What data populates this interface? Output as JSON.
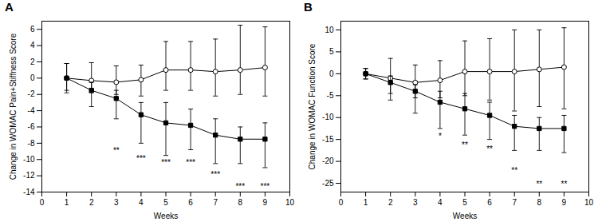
{
  "chart_data": [
    {
      "type": "line",
      "title": "A",
      "xlabel": "Weeks",
      "ylabel": "Change in WOMAC Pain+Stiffness Score",
      "xlim": [
        0,
        10
      ],
      "ylim": [
        -14,
        7
      ],
      "xticks": [
        0,
        1,
        2,
        3,
        4,
        5,
        6,
        7,
        8,
        9,
        10
      ],
      "yticks": [
        -14,
        -12,
        -10,
        -8,
        -6,
        -4,
        -2,
        0,
        2,
        4,
        6
      ],
      "grid": false,
      "series": [
        {
          "color": "#000000",
          "marker": "circle_open",
          "x": [
            1,
            2,
            3,
            4,
            5,
            6,
            7,
            8,
            9
          ],
          "values": [
            0.0,
            -0.3,
            -0.5,
            -0.2,
            1.0,
            1.0,
            0.8,
            1.0,
            1.3
          ],
          "yerr_low": [
            1.5,
            1.5,
            1.5,
            2.0,
            2.5,
            2.5,
            3.0,
            3.0,
            3.5
          ],
          "yerr_high": [
            1.8,
            2.2,
            2.0,
            1.8,
            3.5,
            3.5,
            4.0,
            5.5,
            5.0
          ]
        },
        {
          "color": "#000000",
          "marker": "square",
          "x": [
            1,
            2,
            3,
            4,
            5,
            6,
            7,
            8,
            9
          ],
          "values": [
            0.0,
            -1.5,
            -2.5,
            -4.5,
            -5.5,
            -5.8,
            -7.0,
            -7.5,
            -7.5
          ],
          "yerr_low": [
            1.8,
            2.0,
            2.5,
            3.5,
            4.0,
            3.0,
            3.5,
            3.0,
            3.5
          ],
          "yerr_high": [
            1.8,
            1.0,
            1.0,
            1.5,
            2.5,
            2.0,
            2.0,
            1.5,
            2.0
          ]
        }
      ],
      "annotations": [
        {
          "x": 3,
          "y": -8.5,
          "text": "**"
        },
        {
          "x": 4,
          "y": -9.5,
          "text": "***"
        },
        {
          "x": 5,
          "y": -10.0,
          "text": "***"
        },
        {
          "x": 6,
          "y": -10.0,
          "text": "***"
        },
        {
          "x": 7,
          "y": -11.5,
          "text": "***"
        },
        {
          "x": 8,
          "y": -13.0,
          "text": "***"
        },
        {
          "x": 9,
          "y": -13.0,
          "text": "***"
        }
      ]
    },
    {
      "type": "line",
      "title": "B",
      "xlabel": "Weeks",
      "ylabel": "Change in WOMAC Function Score",
      "xlim": [
        0,
        10
      ],
      "ylim": [
        -27,
        12
      ],
      "xticks": [
        0,
        1,
        2,
        3,
        4,
        5,
        6,
        7,
        8,
        9,
        10
      ],
      "yticks": [
        -25,
        -20,
        -15,
        -10,
        -5,
        0,
        5,
        10
      ],
      "grid": false,
      "series": [
        {
          "color": "#000000",
          "marker": "circle_open",
          "x": [
            1,
            2,
            3,
            4,
            5,
            6,
            7,
            8,
            9
          ],
          "values": [
            0.0,
            -1.0,
            -2.0,
            -1.5,
            0.5,
            0.5,
            0.5,
            1.0,
            1.5
          ],
          "yerr_low": [
            1.2,
            3.5,
            3.5,
            4.0,
            5.5,
            6.5,
            9.0,
            8.5,
            9.5
          ],
          "yerr_high": [
            1.2,
            4.5,
            4.0,
            4.5,
            7.0,
            7.5,
            9.5,
            9.0,
            9.0
          ]
        },
        {
          "color": "#000000",
          "marker": "square",
          "x": [
            1,
            2,
            3,
            4,
            5,
            6,
            7,
            8,
            9
          ],
          "values": [
            0.0,
            -2.0,
            -4.0,
            -6.5,
            -8.0,
            -9.5,
            -12.0,
            -12.5,
            -12.5
          ],
          "yerr_low": [
            1.2,
            4.0,
            5.0,
            6.0,
            6.0,
            5.5,
            5.5,
            5.0,
            5.5
          ],
          "yerr_high": [
            1.2,
            1.5,
            1.5,
            2.5,
            3.5,
            3.0,
            2.5,
            2.5,
            3.0
          ]
        }
      ],
      "annotations": [
        {
          "x": 4,
          "y": -13.5,
          "text": "*"
        },
        {
          "x": 5,
          "y": -15.5,
          "text": "**"
        },
        {
          "x": 6,
          "y": -16.5,
          "text": "**"
        },
        {
          "x": 7,
          "y": -21.5,
          "text": "**"
        },
        {
          "x": 8,
          "y": -24.5,
          "text": "**"
        },
        {
          "x": 9,
          "y": -24.5,
          "text": "**"
        }
      ]
    }
  ]
}
